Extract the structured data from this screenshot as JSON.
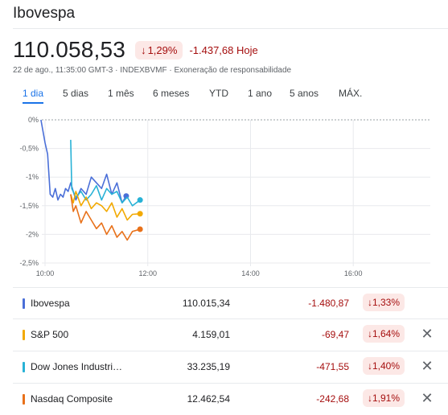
{
  "header": {
    "title": "Ibovespa",
    "price": "110.058,53",
    "pct_change": "1,29%",
    "abs_change": "-1.437,68 Hoje",
    "meta": "22 de ago., 11:35:00 GMT-3 · INDEXBVMF · Exoneração de responsabilidade",
    "down_arrow": "↓"
  },
  "tabs": [
    {
      "label": "1 dia",
      "active": true
    },
    {
      "label": "5 dias",
      "active": false
    },
    {
      "label": "1 mês",
      "active": false
    },
    {
      "label": "6 meses",
      "active": false
    },
    {
      "label": "YTD",
      "active": false
    },
    {
      "label": "1 ano",
      "active": false
    },
    {
      "label": "5 anos",
      "active": false
    },
    {
      "label": "MÁX.",
      "active": false
    }
  ],
  "chart_data": {
    "type": "line",
    "yticks": [
      "0%",
      "-0,5%",
      "-1%",
      "-1,5%",
      "-2%",
      "-2,5%"
    ],
    "xticks": [
      "10:00",
      "12:00",
      "14:00",
      "16:00"
    ],
    "ylim": [
      -2.5,
      0
    ],
    "xlim": [
      10,
      17.5
    ],
    "series": [
      {
        "color": "#4a6fd8",
        "x": [
          9.92,
          10.0,
          10.05,
          10.1,
          10.15,
          10.2,
          10.25,
          10.3,
          10.35,
          10.4,
          10.45,
          10.5,
          10.6,
          10.7,
          10.8,
          10.9,
          11.0,
          11.1,
          11.2,
          11.3,
          11.4,
          11.5,
          11.58
        ],
        "y": [
          0,
          -0.4,
          -0.6,
          -1.3,
          -1.35,
          -1.2,
          -1.4,
          -1.3,
          -1.35,
          -1.2,
          -1.25,
          -1.1,
          -1.4,
          -1.2,
          -1.3,
          -1.0,
          -1.1,
          -1.2,
          -0.95,
          -1.3,
          -1.1,
          -1.45,
          -1.33
        ]
      },
      {
        "color": "#28b2d6",
        "x": [
          10.5,
          10.52,
          10.6,
          10.7,
          10.8,
          10.9,
          11.0,
          11.1,
          11.2,
          11.3,
          11.4,
          11.5,
          11.6,
          11.7,
          11.85
        ],
        "y": [
          -0.35,
          -1.2,
          -1.35,
          -1.25,
          -1.4,
          -1.3,
          -1.15,
          -1.4,
          -1.2,
          -1.3,
          -1.25,
          -1.45,
          -1.35,
          -1.5,
          -1.4
        ]
      },
      {
        "color": "#f2a900",
        "x": [
          10.5,
          10.55,
          10.6,
          10.7,
          10.8,
          10.9,
          11.0,
          11.1,
          11.2,
          11.3,
          11.4,
          11.5,
          11.6,
          11.7,
          11.85
        ],
        "y": [
          -1.3,
          -1.45,
          -1.25,
          -1.5,
          -1.35,
          -1.55,
          -1.45,
          -1.5,
          -1.6,
          -1.45,
          -1.7,
          -1.55,
          -1.75,
          -1.65,
          -1.64
        ]
      },
      {
        "color": "#e8711a",
        "x": [
          10.5,
          10.55,
          10.6,
          10.7,
          10.8,
          10.9,
          11.0,
          11.1,
          11.2,
          11.3,
          11.4,
          11.5,
          11.6,
          11.7,
          11.85
        ],
        "y": [
          -1.3,
          -1.6,
          -1.5,
          -1.8,
          -1.6,
          -1.75,
          -1.9,
          -1.8,
          -2.0,
          -1.85,
          -2.05,
          -1.95,
          -2.1,
          -1.95,
          -1.91
        ]
      }
    ]
  },
  "table": [
    {
      "name": "Ibovespa",
      "value": "110.015,34",
      "change": "-1.480,87",
      "pct": "1,33%",
      "color": "#4a6fd8",
      "closable": false
    },
    {
      "name": "S&P 500",
      "value": "4.159,01",
      "change": "-69,47",
      "pct": "1,64%",
      "color": "#f2a900",
      "closable": true
    },
    {
      "name": "Dow Jones Industri…",
      "value": "33.235,19",
      "change": "-471,55",
      "pct": "1,40%",
      "color": "#28b2d6",
      "closable": true
    },
    {
      "name": "Nasdaq Composite",
      "value": "12.462,54",
      "change": "-242,68",
      "pct": "1,91%",
      "color": "#e8711a",
      "closable": true
    }
  ]
}
